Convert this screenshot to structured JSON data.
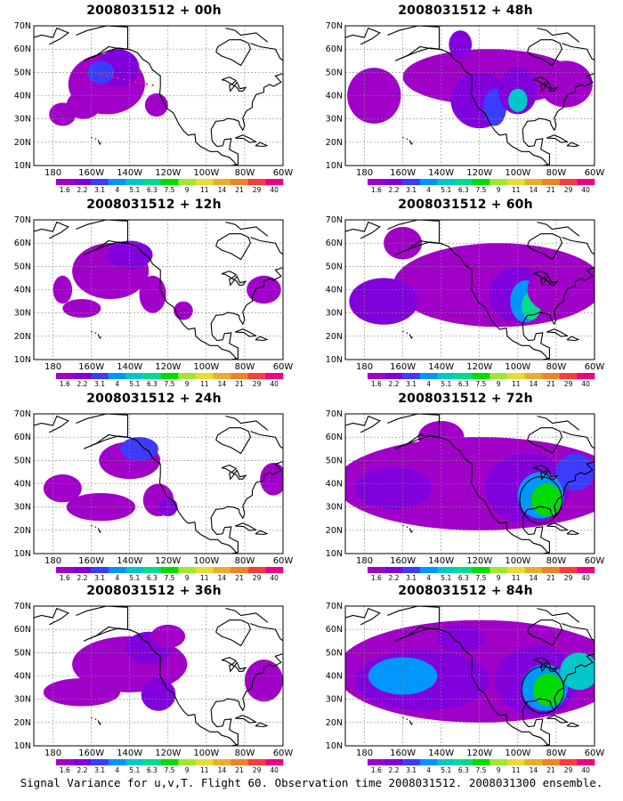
{
  "figure": {
    "caption": "Signal Variance for u,v,T. Flight 60. Observation time 2008031512. 2008031300 ensemble."
  },
  "axes": {
    "lat_labels": [
      "70N",
      "60N",
      "50N",
      "40N",
      "30N",
      "20N",
      "10N"
    ],
    "lon_labels": [
      "180",
      "160W",
      "140W",
      "120W",
      "100W",
      "80W",
      "60W"
    ]
  },
  "colorbar": {
    "levels": [
      "1.6",
      "2.2",
      "3.1",
      "4",
      "5.1",
      "6.3",
      "7.5",
      "9",
      "11",
      "14",
      "21",
      "29",
      "40"
    ],
    "colors": [
      "#a000c8",
      "#8200dc",
      "#3c3cff",
      "#0096ff",
      "#00c8c8",
      "#00dc8c",
      "#00dc00",
      "#a0e632",
      "#e6dc32",
      "#e6af2d",
      "#f08228",
      "#fa3c3c",
      "#f00082"
    ]
  },
  "panels": [
    {
      "id": "00h",
      "title": "2008031512 + 00h",
      "max_level": 4
    },
    {
      "id": "12h",
      "title": "2008031512 + 12h",
      "max_level": 4
    },
    {
      "id": "24h",
      "title": "2008031512 + 24h",
      "max_level": 5
    },
    {
      "id": "36h",
      "title": "2008031512 + 36h",
      "max_level": 5
    },
    {
      "id": "48h",
      "title": "2008031512 + 48h",
      "max_level": 8
    },
    {
      "id": "60h",
      "title": "2008031512 + 60h",
      "max_level": 9
    },
    {
      "id": "72h",
      "title": "2008031512 + 72h",
      "max_level": 10
    },
    {
      "id": "84h",
      "title": "2008031512 + 84h",
      "max_level": 10
    }
  ]
}
